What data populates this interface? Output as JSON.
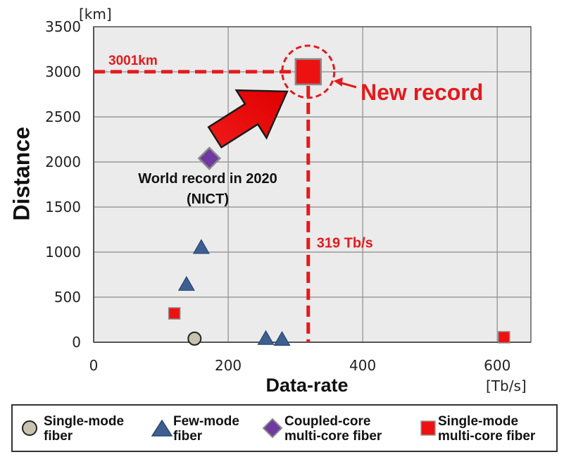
{
  "chart_data": {
    "type": "scatter",
    "xlabel": "Data-rate",
    "ylabel": "Distance",
    "x_unit": "[Tb/s]",
    "y_unit": "[km]",
    "xlim": [
      0,
      650
    ],
    "ylim": [
      0,
      3500
    ],
    "x_ticks": [
      0,
      200,
      400,
      600
    ],
    "y_ticks": [
      0,
      500,
      1000,
      1500,
      2000,
      2500,
      3000,
      3500
    ],
    "grid": true,
    "legend_position": "bottom",
    "series": [
      {
        "name": "Single-mode\n fiber",
        "marker": "circle",
        "color": "#c8c2b0",
        "points": [
          {
            "x": 150,
            "y": 40
          }
        ]
      },
      {
        "name": "Few-mode\n fiber",
        "marker": "triangle",
        "color": "#3d6091",
        "points": [
          {
            "x": 138,
            "y": 640
          },
          {
            "x": 160,
            "y": 1050
          },
          {
            "x": 256,
            "y": 40
          },
          {
            "x": 280,
            "y": 30
          }
        ]
      },
      {
        "name": "Coupled-core\nmulti-core fiber",
        "marker": "diamond",
        "color": "#6f3aa0",
        "points": [
          {
            "x": 172,
            "y": 2040
          }
        ]
      },
      {
        "name": "Single-mode\nmulti-core fiber",
        "marker": "square",
        "color": "#ee1111",
        "points": [
          {
            "x": 120,
            "y": 320
          },
          {
            "x": 610,
            "y": 55
          },
          {
            "x": 319,
            "y": 3001,
            "highlight": true
          }
        ]
      }
    ],
    "annotations": {
      "distance_value": "3001km",
      "rate_value": "319 Tb/s",
      "new_record": "New record",
      "prior_record": "World record in 2020\n(NICT)"
    },
    "highlight": {
      "x": 319,
      "y": 3001
    },
    "prior_record_point": {
      "x": 172,
      "y": 2040
    }
  },
  "colors": {
    "accent": "#e41a1c",
    "plot_background": "#ebebeb",
    "grid": "#9a9a9a"
  }
}
